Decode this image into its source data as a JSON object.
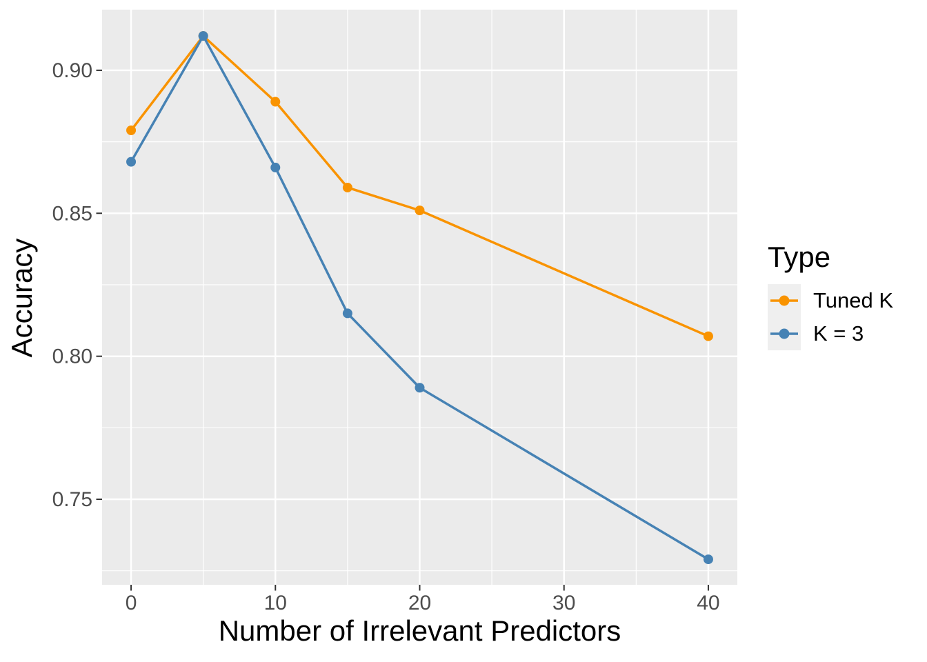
{
  "chart_data": {
    "type": "line",
    "title": "",
    "xlabel": "Number of Irrelevant Predictors",
    "ylabel": "Accuracy",
    "x": [
      0,
      5,
      10,
      15,
      20,
      40
    ],
    "series": [
      {
        "name": "Tuned K",
        "color": "#F99300",
        "values": [
          0.879,
          0.912,
          0.889,
          0.859,
          0.851,
          0.807
        ]
      },
      {
        "name": "K = 3",
        "color": "#4682B4",
        "values": [
          0.868,
          0.912,
          0.866,
          0.815,
          0.789,
          0.729
        ]
      }
    ],
    "xlim": [
      -2.01,
      42.01
    ],
    "ylim": [
      0.7201,
      0.9212
    ],
    "x_ticks": [
      {
        "value": 0,
        "label": "0"
      },
      {
        "value": 10,
        "label": "10"
      },
      {
        "value": 20,
        "label": "20"
      },
      {
        "value": 30,
        "label": "30"
      },
      {
        "value": 40,
        "label": "40"
      }
    ],
    "y_ticks": [
      {
        "value": 0.75,
        "label": "0.75"
      },
      {
        "value": 0.8,
        "label": "0.80"
      },
      {
        "value": 0.85,
        "label": "0.85"
      },
      {
        "value": 0.9,
        "label": "0.90"
      }
    ],
    "x_minor_gridlines": [
      5,
      15,
      25,
      35
    ],
    "y_minor_gridlines": [
      0.725,
      0.775,
      0.825,
      0.875
    ],
    "grid": "on",
    "legend": {
      "title": "Type",
      "position": "right"
    },
    "style": {
      "panel_bg": "#EBEBEB",
      "grid_color": "#FFFFFF",
      "tick_label_color": "#4D4D4D",
      "tick_mark_color": "#333333",
      "axis_title_color": "#000000",
      "legend_key_bg": "#EFEFEF"
    }
  }
}
